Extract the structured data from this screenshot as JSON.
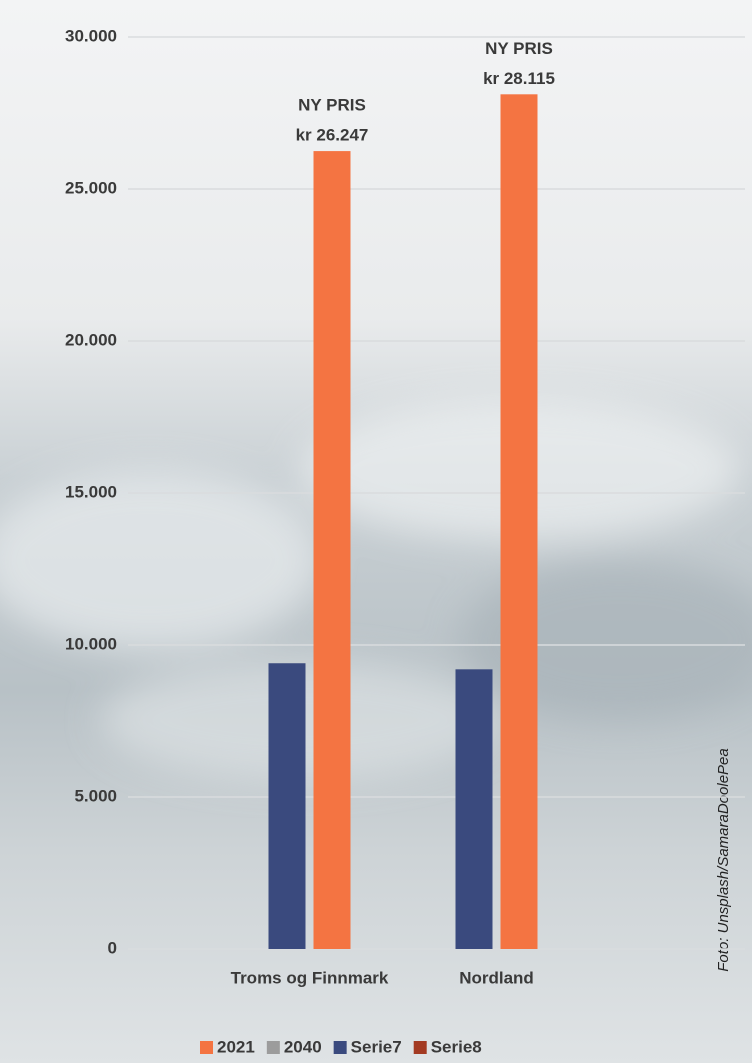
{
  "chart_data": {
    "type": "bar",
    "categories": [
      "Troms og Finnmark",
      "Nordland"
    ],
    "series": [
      {
        "name": "2021",
        "color": "#f47442",
        "values": [
          26247,
          28115
        ],
        "value_labels": [
          "kr 26.247",
          "kr 28.115"
        ]
      },
      {
        "name": "2040",
        "color": "#9c9c9c",
        "values": [
          null,
          null
        ]
      },
      {
        "name": "Serie7",
        "color": "#3a4a7e",
        "values": [
          9400,
          9200
        ]
      },
      {
        "name": "Serie8",
        "color": "#a33a22",
        "values": [
          null,
          null
        ]
      }
    ],
    "annotations": [
      "NY PRIS",
      "NY PRIS"
    ],
    "ylim": [
      0,
      30000
    ],
    "yticks": [
      0,
      {
        "value": 5000,
        "label": "5.000"
      },
      {
        "value": 10000,
        "label": "10.000"
      },
      {
        "value": 15000,
        "label": "15.000"
      },
      {
        "value": 20000,
        "label": "20.000"
      },
      {
        "value": 25000,
        "label": "25.000"
      },
      {
        "value": 30000,
        "label": "30.000"
      }
    ],
    "grid": true,
    "legend": "bottom",
    "credit": "Foto: Unsplash/SamaraDoolePea"
  }
}
